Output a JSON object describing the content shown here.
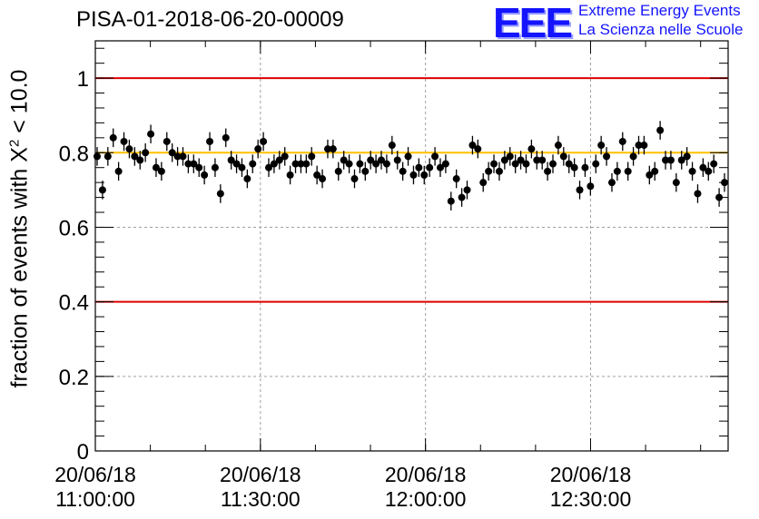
{
  "title": "PISA-01-2018-06-20-00009",
  "logo": {
    "mark": "EEE",
    "line1": "Extreme Energy Events",
    "line2": "La Scienza nelle Scuole",
    "color": "#1414ff"
  },
  "chart_data": {
    "type": "scatter",
    "title": "PISA-01-2018-06-20-00009",
    "ylabel_main": "fraction of events with ",
    "ylabel_chi": "X",
    "ylabel_sup": "2",
    "ylabel_tail": " < 10.0",
    "ylim": [
      0,
      1.1
    ],
    "xlim_minutes": [
      0,
      57.5
    ],
    "yticks": [
      {
        "value": 0,
        "label": "0"
      },
      {
        "value": 0.2,
        "label": "0.2"
      },
      {
        "value": 0.4,
        "label": "0.4"
      },
      {
        "value": 0.6,
        "label": "0.6"
      },
      {
        "value": 0.8,
        "label": "0.8"
      },
      {
        "value": 1,
        "label": "1"
      }
    ],
    "xticks": [
      {
        "minutes": 0,
        "line1": "20/06/18",
        "line2": "11:00:00"
      },
      {
        "minutes": 15,
        "line1": "20/06/18",
        "line2": "11:30:00"
      },
      {
        "minutes": 30,
        "line1": "20/06/18",
        "line2": "12:00:00"
      },
      {
        "minutes": 45,
        "line1": "20/06/18",
        "line2": "12:30:00"
      }
    ],
    "reference_lines": [
      {
        "value": 1.0,
        "color": "#e00000"
      },
      {
        "value": 0.4,
        "color": "#e00000"
      },
      {
        "value": 0.8,
        "color": "#ffc000"
      }
    ],
    "grid": true,
    "marker_color": "#000000",
    "error": 0.025,
    "values": [
      0.79,
      0.7,
      0.79,
      0.84,
      0.75,
      0.83,
      0.81,
      0.79,
      0.78,
      0.8,
      0.85,
      0.76,
      0.75,
      0.83,
      0.8,
      0.79,
      0.79,
      0.77,
      0.77,
      0.76,
      0.74,
      0.83,
      0.76,
      0.69,
      0.84,
      0.78,
      0.77,
      0.76,
      0.73,
      0.77,
      0.81,
      0.83,
      0.76,
      0.77,
      0.78,
      0.79,
      0.74,
      0.77,
      0.77,
      0.77,
      0.79,
      0.74,
      0.73,
      0.81,
      0.81,
      0.75,
      0.78,
      0.77,
      0.73,
      0.77,
      0.75,
      0.78,
      0.77,
      0.78,
      0.77,
      0.82,
      0.78,
      0.75,
      0.79,
      0.74,
      0.76,
      0.74,
      0.76,
      0.79,
      0.76,
      0.77,
      0.67,
      0.73,
      0.68,
      0.7,
      0.82,
      0.81,
      0.72,
      0.75,
      0.77,
      0.75,
      0.78,
      0.79,
      0.77,
      0.78,
      0.77,
      0.81,
      0.78,
      0.78,
      0.75,
      0.77,
      0.82,
      0.79,
      0.77,
      0.76,
      0.7,
      0.76,
      0.71,
      0.77,
      0.82,
      0.79,
      0.72,
      0.75,
      0.83,
      0.75,
      0.79,
      0.82,
      0.82,
      0.74,
      0.75,
      0.86,
      0.78,
      0.78,
      0.72,
      0.78,
      0.79,
      0.75,
      0.69,
      0.76,
      0.75,
      0.77,
      0.68,
      0.72
    ]
  }
}
